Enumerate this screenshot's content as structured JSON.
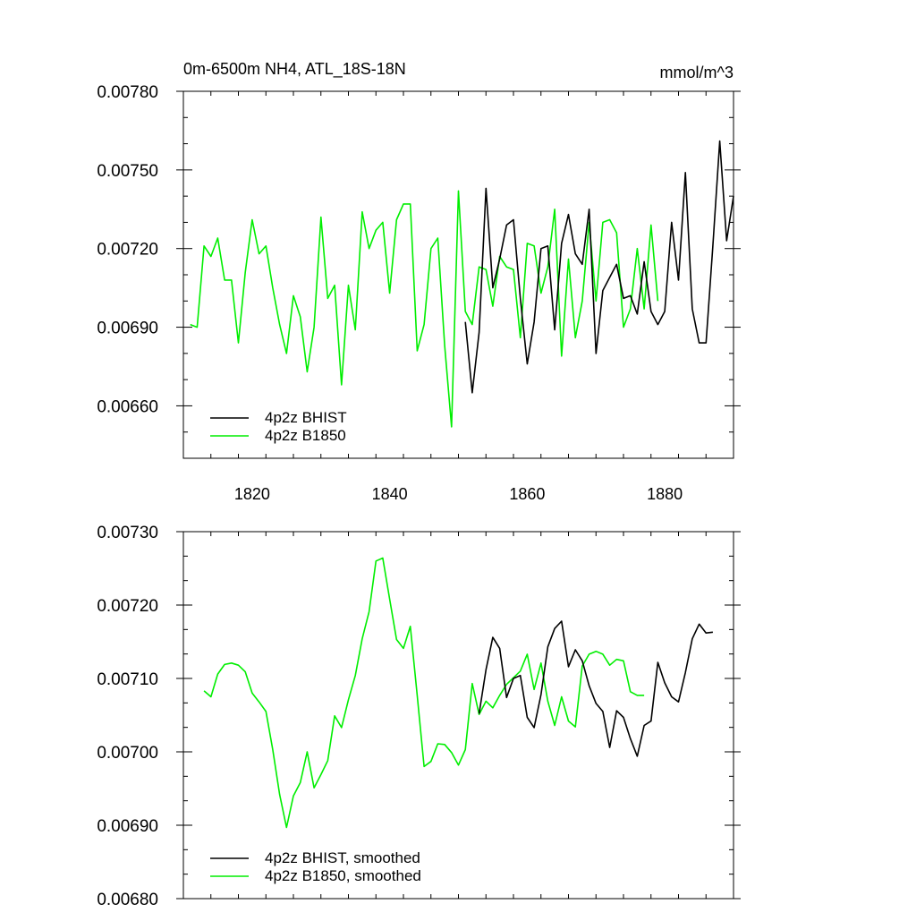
{
  "chart_data": [
    {
      "type": "line",
      "title": "0m-6500m NH4, ATL_18S-18N",
      "units": "mmol/m^3",
      "xlim": [
        1810,
        1890
      ],
      "ylim": [
        0.0064,
        0.0078
      ],
      "x_ticks": [
        1820,
        1840,
        1860,
        1880
      ],
      "y_ticks": [
        0.0066,
        0.0069,
        0.0072,
        0.0075,
        0.0078
      ],
      "y_tick_labels": [
        "0.00660",
        "0.00690",
        "0.00720",
        "0.00750",
        "0.00780"
      ],
      "grid": false,
      "legend_position": "bottom-left",
      "series": [
        {
          "name": "4p2z BHIST",
          "color": "#000000",
          "x": [
            1851,
            1852,
            1853,
            1854,
            1855,
            1856,
            1857,
            1858,
            1859,
            1860,
            1861,
            1862,
            1863,
            1864,
            1865,
            1866,
            1867,
            1868,
            1869,
            1870,
            1871,
            1872,
            1873,
            1874,
            1875,
            1876,
            1877,
            1878,
            1879,
            1880,
            1881,
            1882,
            1883,
            1884,
            1885,
            1886,
            1887,
            1888,
            1889,
            1890
          ],
          "values": [
            0.00692,
            0.00665,
            0.00688,
            0.00743,
            0.00705,
            0.00716,
            0.00729,
            0.00731,
            0.00701,
            0.00676,
            0.00692,
            0.0072,
            0.00721,
            0.00689,
            0.00722,
            0.00733,
            0.00718,
            0.00714,
            0.00735,
            0.0068,
            0.00704,
            0.00709,
            0.00714,
            0.00701,
            0.00702,
            0.00695,
            0.00715,
            0.00696,
            0.00691,
            0.00696,
            0.0073,
            0.00708,
            0.00749,
            0.00697,
            0.00684,
            0.00684,
            0.00721,
            0.00761,
            0.00723,
            0.0074
          ]
        },
        {
          "name": "4p2z B1850",
          "color": "#00ee00",
          "x": [
            1811,
            1812,
            1813,
            1814,
            1815,
            1816,
            1817,
            1818,
            1819,
            1820,
            1821,
            1822,
            1823,
            1824,
            1825,
            1826,
            1827,
            1828,
            1829,
            1830,
            1831,
            1832,
            1833,
            1834,
            1835,
            1836,
            1837,
            1838,
            1839,
            1840,
            1841,
            1842,
            1843,
            1844,
            1845,
            1846,
            1847,
            1848,
            1849,
            1850,
            1851,
            1852,
            1853,
            1854,
            1855,
            1856,
            1857,
            1858,
            1859,
            1860,
            1861,
            1862,
            1863,
            1864,
            1865,
            1866,
            1867,
            1868,
            1869,
            1870,
            1871,
            1872,
            1873,
            1874,
            1875,
            1876,
            1877,
            1878,
            1879
          ],
          "values": [
            0.00691,
            0.0069,
            0.00721,
            0.00717,
            0.00724,
            0.00708,
            0.00708,
            0.00684,
            0.00711,
            0.00731,
            0.00718,
            0.00721,
            0.00705,
            0.00691,
            0.0068,
            0.00702,
            0.00694,
            0.00673,
            0.0069,
            0.00732,
            0.00701,
            0.00706,
            0.00668,
            0.00706,
            0.00689,
            0.00734,
            0.0072,
            0.00727,
            0.0073,
            0.00703,
            0.00731,
            0.00737,
            0.00737,
            0.00681,
            0.00691,
            0.0072,
            0.00724,
            0.00683,
            0.00652,
            0.00742,
            0.00696,
            0.00691,
            0.00713,
            0.00712,
            0.00698,
            0.00717,
            0.00713,
            0.00712,
            0.00686,
            0.00722,
            0.00721,
            0.00703,
            0.00713,
            0.00735,
            0.00679,
            0.00716,
            0.00686,
            0.007,
            0.0073,
            0.007,
            0.0073,
            0.00731,
            0.00726,
            0.0069,
            0.00697,
            0.0072,
            0.00697,
            0.00729,
            0.007
          ]
        }
      ]
    },
    {
      "type": "line",
      "xlim": [
        1810,
        1890
      ],
      "ylim": [
        0.0068,
        0.0073
      ],
      "x_ticks": [
        1820,
        1840,
        1860,
        1880
      ],
      "y_ticks": [
        0.0068,
        0.0069,
        0.007,
        0.0071,
        0.0072,
        0.0073
      ],
      "y_tick_labels": [
        "0.00680",
        "0.00690",
        "0.00700",
        "0.00710",
        "0.00720",
        "0.00730"
      ],
      "grid": false,
      "legend_position": "bottom-left",
      "series": [
        {
          "name": "4p2z BHIST, smoothed",
          "color": "#000000",
          "x": [
            1853,
            1854,
            1855,
            1856,
            1857,
            1858,
            1859,
            1860,
            1861,
            1862,
            1863,
            1864,
            1865,
            1866,
            1867,
            1868,
            1869,
            1870,
            1871,
            1872,
            1873,
            1874,
            1875,
            1876,
            1877,
            1878,
            1879,
            1880,
            1881,
            1882,
            1883,
            1884,
            1885,
            1886,
            1887
          ],
          "values": [
            0.007052,
            0.007112,
            0.007156,
            0.007141,
            0.007074,
            0.0071,
            0.007104,
            0.007047,
            0.007033,
            0.007078,
            0.007143,
            0.007168,
            0.007178,
            0.007116,
            0.007139,
            0.007124,
            0.00709,
            0.007066,
            0.007055,
            0.007006,
            0.007056,
            0.007047,
            0.007018,
            0.006994,
            0.007036,
            0.007042,
            0.007122,
            0.007094,
            0.007075,
            0.007068,
            0.007108,
            0.007154,
            0.007174,
            0.007162,
            0.007163
          ]
        },
        {
          "name": "4p2z B1850, smoothed",
          "color": "#00ee00",
          "x": [
            1813,
            1814,
            1815,
            1816,
            1817,
            1818,
            1819,
            1820,
            1821,
            1822,
            1823,
            1824,
            1825,
            1826,
            1827,
            1828,
            1829,
            1830,
            1831,
            1832,
            1833,
            1834,
            1835,
            1836,
            1837,
            1838,
            1839,
            1840,
            1841,
            1842,
            1843,
            1844,
            1845,
            1846,
            1847,
            1848,
            1849,
            1850,
            1851,
            1852,
            1853,
            1854,
            1855,
            1856,
            1857,
            1858,
            1859,
            1860,
            1861,
            1862,
            1863,
            1864,
            1865,
            1866,
            1867,
            1868,
            1869,
            1870,
            1871,
            1872,
            1873,
            1874,
            1875,
            1876,
            1877
          ],
          "values": [
            0.007083,
            0.007075,
            0.007106,
            0.007119,
            0.007121,
            0.007118,
            0.007109,
            0.00708,
            0.007068,
            0.007055,
            0.007003,
            0.006942,
            0.006897,
            0.00694,
            0.006958,
            0.007,
            0.006951,
            0.006969,
            0.006988,
            0.007049,
            0.007033,
            0.007071,
            0.007104,
            0.007154,
            0.007191,
            0.00726,
            0.007264,
            0.007208,
            0.007153,
            0.007141,
            0.007171,
            0.007077,
            0.00698,
            0.006987,
            0.007011,
            0.00701,
            0.006999,
            0.006982,
            0.007003,
            0.007093,
            0.007051,
            0.007069,
            0.00706,
            0.007077,
            0.007092,
            0.007101,
            0.00711,
            0.007133,
            0.007085,
            0.007121,
            0.007069,
            0.007036,
            0.007075,
            0.007042,
            0.007034,
            0.007117,
            0.007133,
            0.007137,
            0.007133,
            0.007118,
            0.007126,
            0.007124,
            0.007082,
            0.007077,
            0.007077
          ]
        }
      ]
    }
  ]
}
